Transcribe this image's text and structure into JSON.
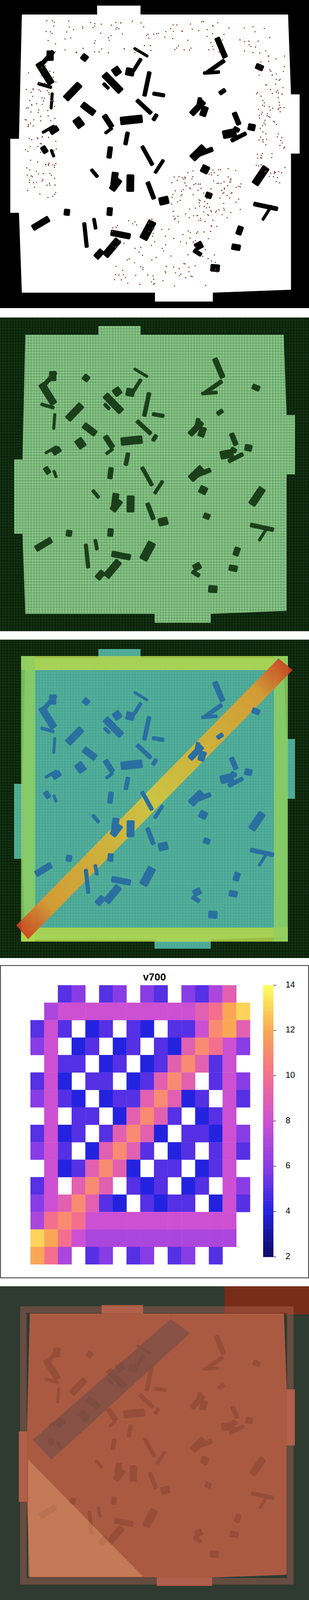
{
  "chart_data": {
    "type": "heatmap",
    "title": "v700",
    "cells": [
      [
        null,
        null,
        5,
        6,
        null,
        5,
        6,
        null,
        6,
        5,
        null,
        6,
        5,
        7,
        9,
        null
      ],
      [
        null,
        7,
        8,
        8,
        8,
        8,
        8,
        8,
        8,
        8,
        8,
        8,
        9,
        10,
        12,
        13
      ],
      [
        5,
        8,
        5,
        null,
        4,
        5,
        null,
        5,
        4,
        null,
        5,
        5,
        8,
        11,
        12,
        9
      ],
      [
        6,
        8,
        null,
        4,
        5,
        null,
        4,
        5,
        null,
        5,
        4,
        9,
        11,
        10,
        8,
        6
      ],
      [
        null,
        8,
        5,
        5,
        null,
        4,
        5,
        null,
        4,
        5,
        9,
        11,
        9,
        5,
        8,
        null
      ],
      [
        5,
        8,
        4,
        null,
        5,
        5,
        null,
        4,
        5,
        9,
        11,
        9,
        null,
        5,
        8,
        6
      ],
      [
        6,
        8,
        5,
        4,
        null,
        4,
        5,
        5,
        9,
        11,
        9,
        4,
        5,
        null,
        8,
        5
      ],
      [
        null,
        8,
        null,
        5,
        5,
        null,
        4,
        9,
        11,
        9,
        5,
        null,
        4,
        5,
        8,
        null
      ],
      [
        5,
        8,
        4,
        5,
        null,
        5,
        9,
        11,
        9,
        4,
        null,
        5,
        5,
        4,
        8,
        6
      ],
      [
        6,
        8,
        5,
        null,
        4,
        9,
        11,
        9,
        5,
        null,
        4,
        5,
        null,
        5,
        8,
        5
      ],
      [
        null,
        8,
        4,
        5,
        9,
        11,
        9,
        4,
        null,
        5,
        5,
        null,
        4,
        5,
        8,
        null
      ],
      [
        5,
        8,
        null,
        9,
        11,
        9,
        null,
        5,
        4,
        5,
        null,
        4,
        5,
        null,
        8,
        6
      ],
      [
        6,
        8,
        9,
        11,
        9,
        5,
        4,
        null,
        5,
        4,
        5,
        5,
        null,
        4,
        8,
        5
      ],
      [
        7,
        10,
        11,
        10,
        8,
        8,
        8,
        8,
        8,
        8,
        8,
        8,
        8,
        8,
        8,
        null
      ],
      [
        13,
        12,
        10,
        8,
        7,
        7,
        7,
        7,
        7,
        7,
        7,
        7,
        7,
        7,
        7,
        null
      ],
      [
        12,
        10,
        7,
        null,
        5,
        6,
        null,
        5,
        6,
        null,
        5,
        6,
        null,
        5,
        null,
        null
      ]
    ],
    "colorbar_lim": [
      2,
      14
    ],
    "colorbar_ticks": [
      2,
      4,
      6,
      8,
      10,
      12,
      14
    ]
  }
}
